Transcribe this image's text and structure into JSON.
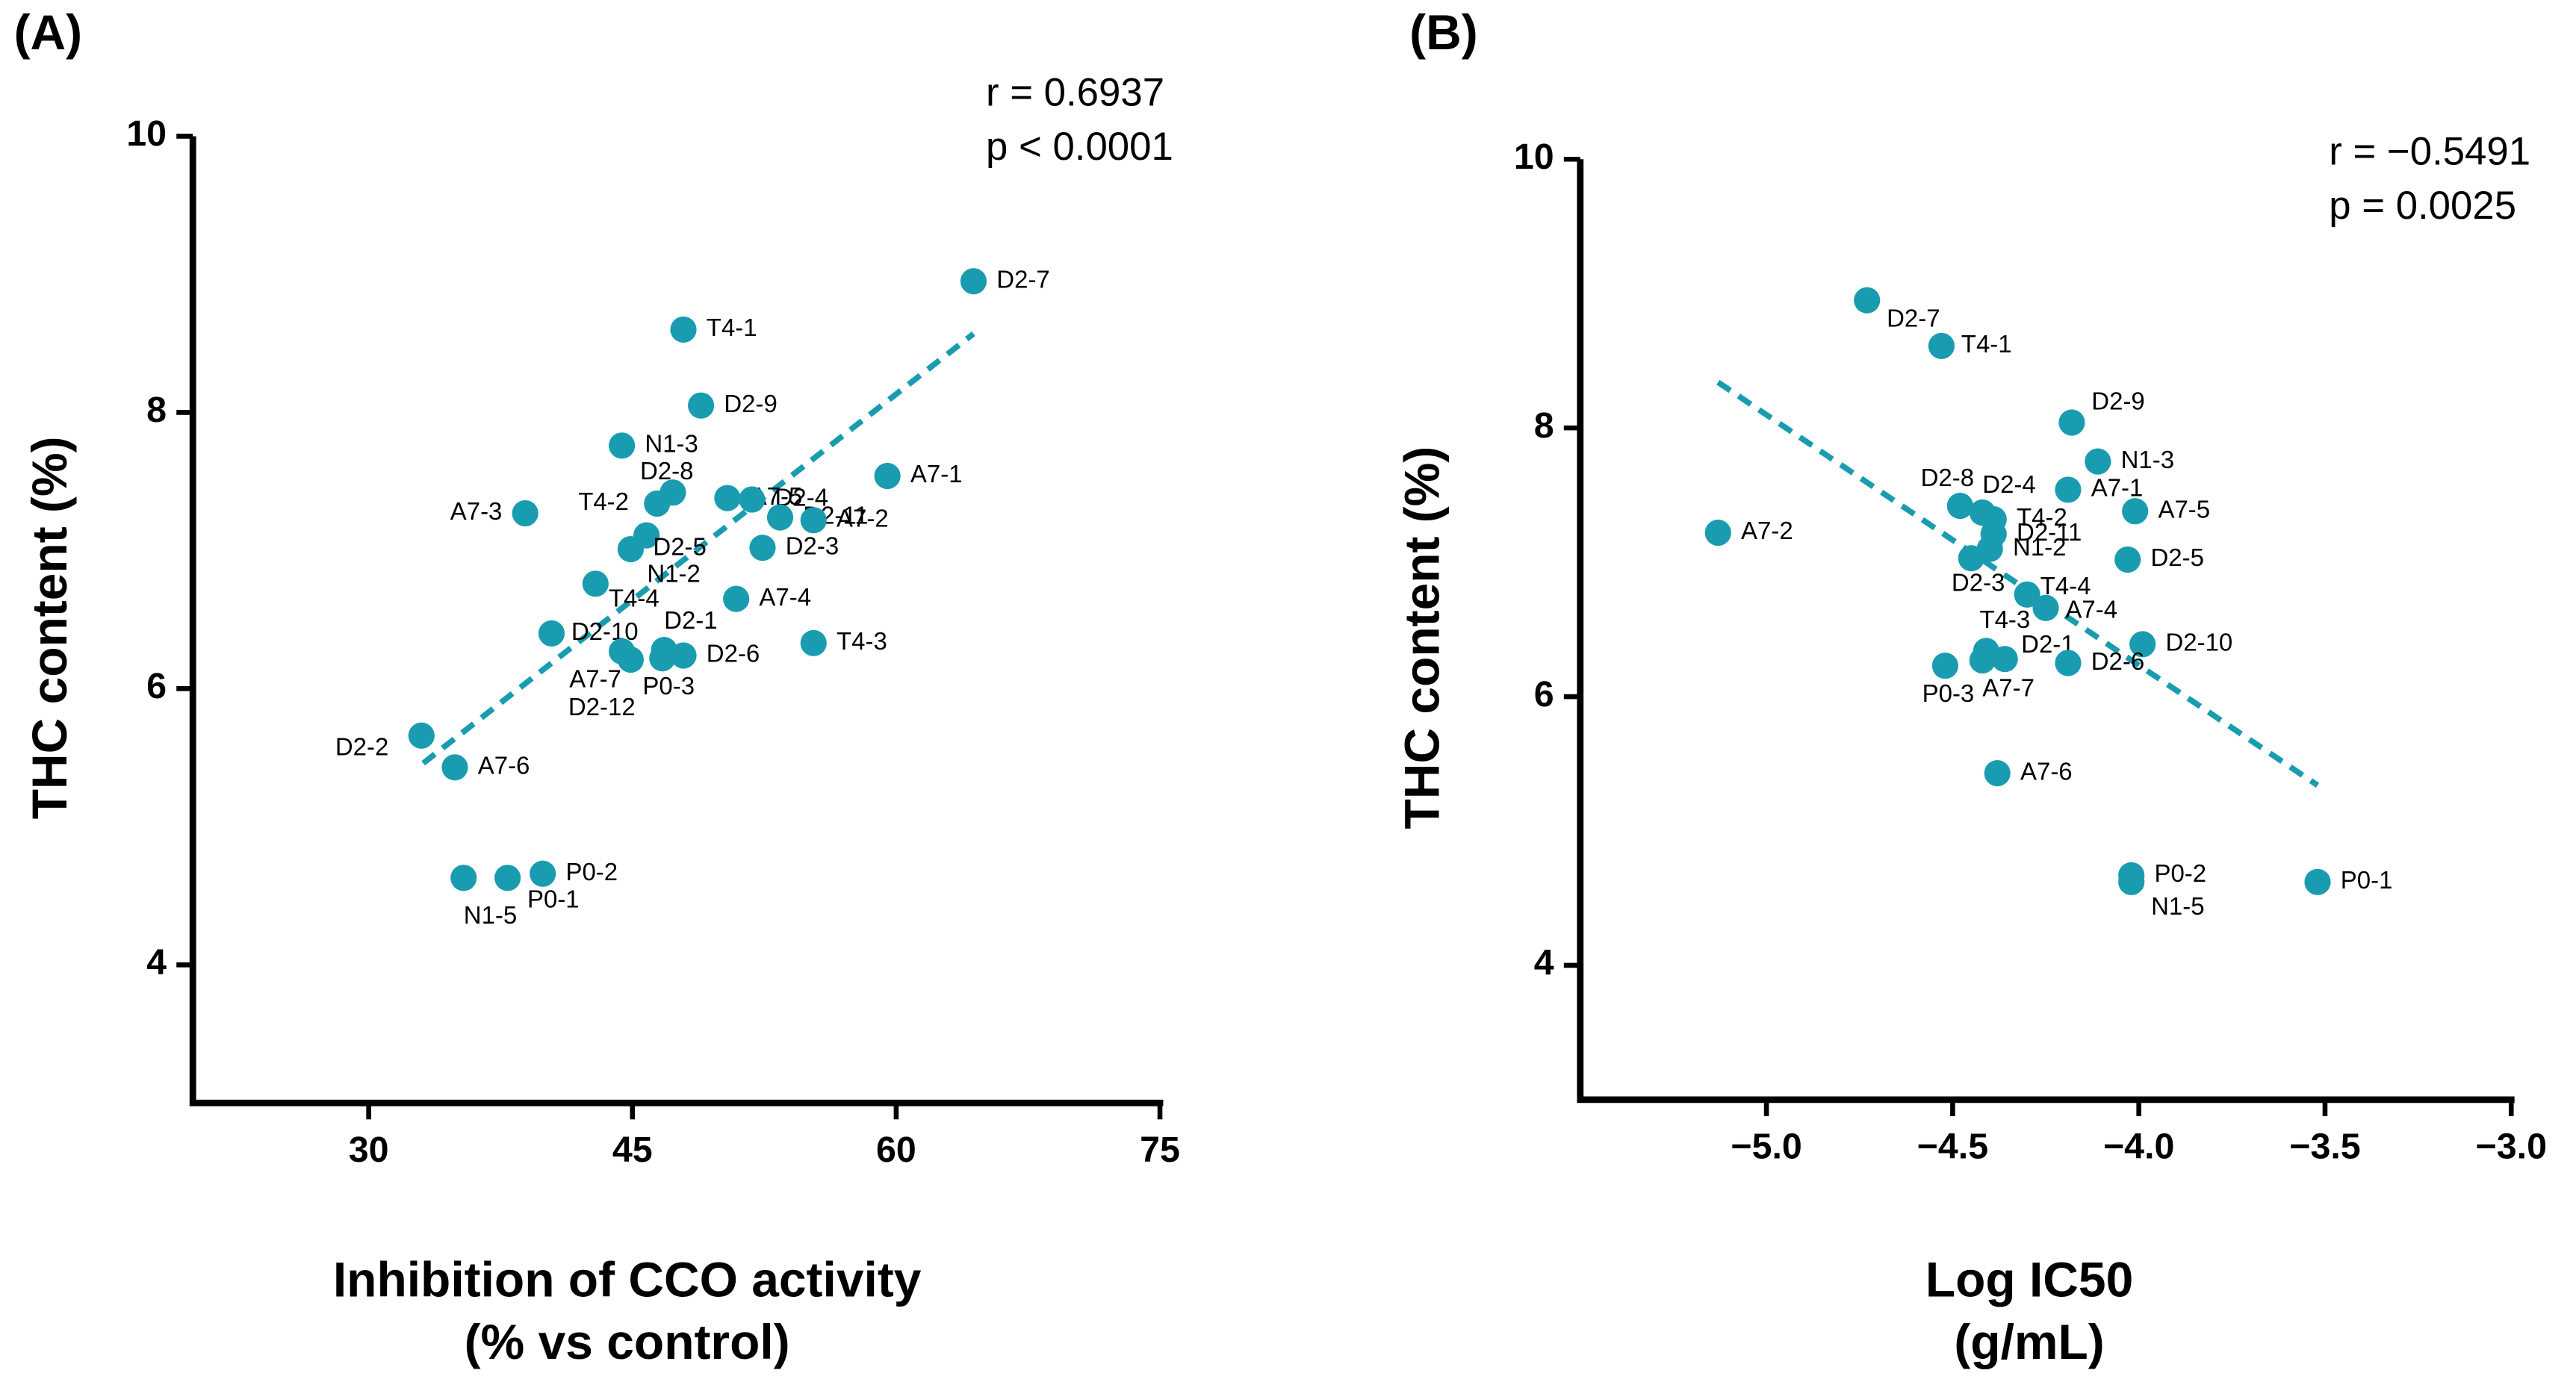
{
  "chart_data": [
    {
      "type": "scatter",
      "panel_label": "(A)",
      "annotations": [
        "r = 0.6937",
        "p < 0.0001"
      ],
      "xlabel": [
        "Inhibition of CCO activity",
        "(% vs control)"
      ],
      "ylabel": "THC content (%)",
      "xlim": [
        20,
        75
      ],
      "xticks": [
        30,
        45,
        60,
        75
      ],
      "ylim": [
        3,
        10
      ],
      "yticks": [
        4,
        6,
        8,
        10
      ],
      "color": "#1a9cb0",
      "point_labels": [
        "D2-7",
        "T4-1",
        "D2-9",
        "N1-3",
        "D2-8",
        "T4-2",
        "A7-5",
        "D2-4",
        "D2-11",
        "A7-1",
        "A7-3",
        "A7-2",
        "D2-5",
        "N1-2",
        "D2-3",
        "T4-4",
        "A7-4",
        "D2-10",
        "T4-3",
        "A7-7",
        "D2-12",
        "D2-1",
        "P0-3",
        "D2-6",
        "D2-2",
        "A7-6",
        "N1-5",
        "P0-1",
        "P0-2"
      ],
      "x": [
        64.4,
        47.9,
        48.9,
        44.4,
        47.3,
        46.4,
        50.4,
        51.8,
        53.4,
        59.5,
        38.9,
        55.3,
        45.8,
        44.9,
        52.4,
        42.9,
        50.9,
        40.4,
        55.3,
        44.4,
        44.9,
        46.8,
        46.7,
        47.9,
        33.0,
        34.9,
        35.4,
        37.9,
        39.9
      ],
      "values": [
        8.95,
        8.6,
        8.05,
        7.76,
        7.42,
        7.34,
        7.38,
        7.37,
        7.24,
        7.54,
        7.27,
        7.22,
        7.11,
        7.01,
        7.02,
        6.76,
        6.65,
        6.4,
        6.33,
        6.27,
        6.21,
        6.28,
        6.22,
        6.24,
        5.66,
        5.43,
        4.63,
        4.63,
        4.66
      ],
      "trendline": {
        "x": [
          33.1,
          64.4
        ],
        "y": [
          5.46,
          8.57
        ]
      }
    },
    {
      "type": "scatter",
      "panel_label": "(B)",
      "annotations": [
        "r = −0.5491",
        "p = 0.0025"
      ],
      "xlabel": [
        "Log IC50",
        "(g/mL)"
      ],
      "ylabel": "THC content (%)",
      "xlim": [
        -5.5,
        -3.0
      ],
      "xticks": [
        {
          "value": -5,
          "label": "−5.0"
        },
        {
          "value": -4.5,
          "label": "−4.5"
        },
        {
          "value": -4,
          "label": "−4.0"
        },
        {
          "value": -3.5,
          "label": "−3.5"
        },
        {
          "value": -3,
          "label": "−3.0"
        }
      ],
      "ylim": [
        3,
        10
      ],
      "yticks": [
        4,
        6,
        8,
        10
      ],
      "color": "#1a9cb0",
      "point_labels": [
        "D2-7",
        "T4-1",
        "D2-9",
        "N1-3",
        "A7-1",
        "A7-5",
        "A7-2",
        "D2-5",
        "D2-8",
        "D2-4",
        "T4-2",
        "D2-11",
        "N1-2",
        "D2-3",
        "T4-4",
        "A7-4",
        "D2-10",
        "T4-3",
        "D2-1",
        "A7-7",
        "P0-3",
        "D2-6",
        "A7-6",
        "P0-2",
        "N1-5",
        "P0-1"
      ],
      "x": [
        -4.73,
        -4.53,
        -4.18,
        -4.11,
        -4.19,
        -4.01,
        -5.13,
        -4.03,
        -4.48,
        -4.42,
        -4.39,
        -4.39,
        -4.4,
        -4.45,
        -4.3,
        -4.25,
        -3.99,
        -4.41,
        -4.36,
        -4.42,
        -4.52,
        -4.19,
        -4.38,
        -4.02,
        -4.02,
        -3.52
      ],
      "values": [
        8.95,
        8.61,
        8.04,
        7.75,
        7.54,
        7.38,
        7.22,
        7.02,
        7.42,
        7.37,
        7.32,
        7.21,
        7.1,
        7.03,
        6.76,
        6.66,
        6.39,
        6.34,
        6.28,
        6.27,
        6.23,
        6.25,
        5.43,
        4.67,
        4.62,
        4.62
      ],
      "trendline": {
        "x": [
          -5.13,
          -3.52
        ],
        "y": [
          8.34,
          5.34
        ]
      }
    }
  ]
}
